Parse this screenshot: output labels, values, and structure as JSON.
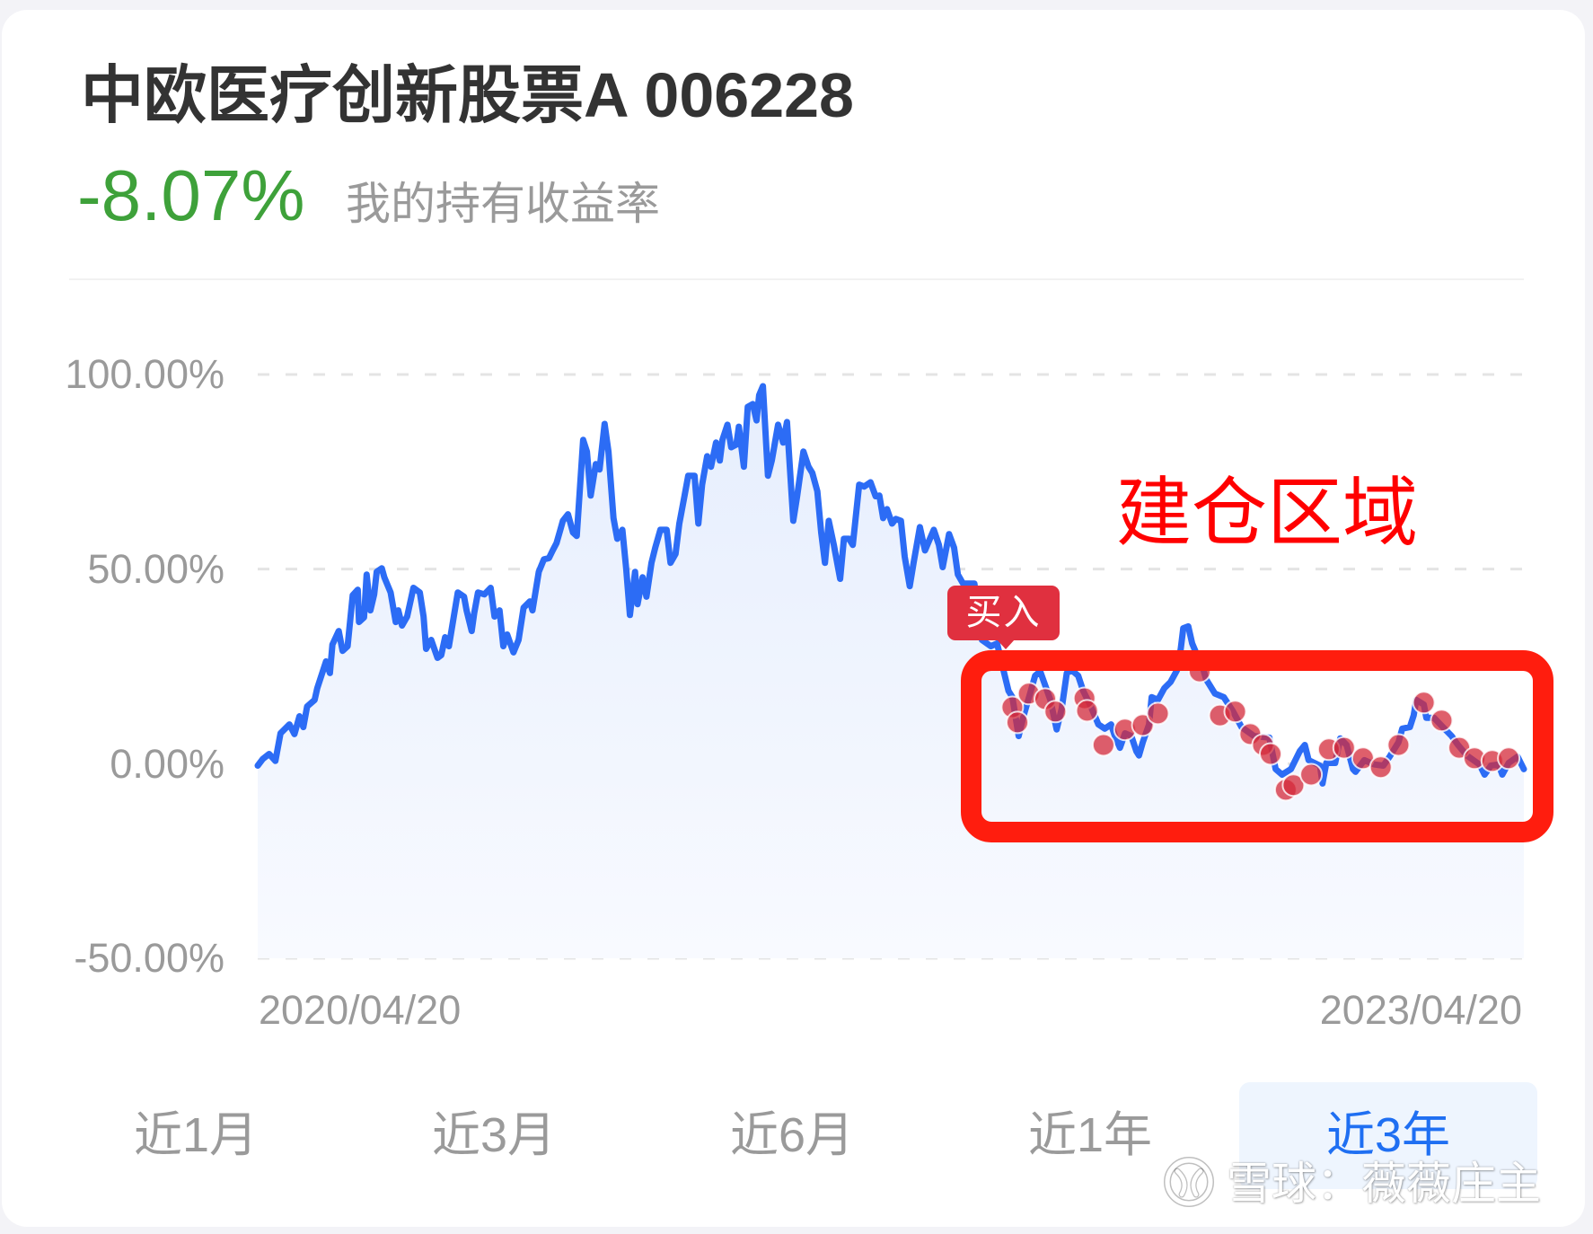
{
  "header": {
    "title": "中欧医疗创新股票A 006228",
    "return_value": "-8.07%",
    "return_label": "我的持有收益率"
  },
  "colors": {
    "title": "#333333",
    "return_negative": "#3ea13a",
    "line": "#2c6cf5",
    "buy_dot": "#d42a3a",
    "buy_badge": "#e0303f",
    "annotation": "#ff1d0e",
    "tab_active": "#1f6ff2",
    "tab_active_bg": "#eef5fe",
    "muted_text": "#9a9a9a"
  },
  "chart": {
    "y_labels": [
      "100.00%",
      "50.00%",
      "0.00%",
      "-50.00%"
    ],
    "x_labels": {
      "start": "2020/04/20",
      "end": "2023/04/20"
    },
    "buy_badge": "买入",
    "annotation_text": "建仓区域"
  },
  "tabs": [
    {
      "label": "近1月",
      "active": false
    },
    {
      "label": "近3月",
      "active": false
    },
    {
      "label": "近6月",
      "active": false
    },
    {
      "label": "近1年",
      "active": false
    },
    {
      "label": "近3年",
      "active": true
    }
  ],
  "watermark": {
    "text": "雪球：薇薇庄主"
  },
  "chart_data": {
    "type": "line",
    "title": "中欧医疗创新股票A 006228",
    "xlabel": "",
    "ylabel": "",
    "x_range": [
      "2020/04/20",
      "2023/04/20"
    ],
    "x_scale": [
      0,
      1000
    ],
    "ylim": [
      -50,
      100
    ],
    "yticks": [
      100,
      50,
      0,
      -50
    ],
    "ytick_labels": [
      "100.00%",
      "50.00%",
      "0.00%",
      "-50.00%"
    ],
    "xtick_labels": [
      "2020/04/20",
      "2023/04/20"
    ],
    "grid": "horizontal dashed",
    "legend": null,
    "series": [
      {
        "name": "收益率",
        "points": [
          [
            0,
            -0.5
          ],
          [
            4,
            1.2
          ],
          [
            9,
            2.5
          ],
          [
            14,
            0.7
          ],
          [
            18,
            7.8
          ],
          [
            25,
            10.1
          ],
          [
            29,
            7.6
          ],
          [
            33,
            12.2
          ],
          [
            36,
            9.4
          ],
          [
            39,
            14.7
          ],
          [
            45,
            16.4
          ],
          [
            47,
            19.4
          ],
          [
            54,
            26.3
          ],
          [
            57,
            23.3
          ],
          [
            59,
            30.6
          ],
          [
            64,
            34.1
          ],
          [
            67,
            29.0
          ],
          [
            71,
            30.2
          ],
          [
            75,
            43.3
          ],
          [
            79,
            44.7
          ],
          [
            80,
            36.4
          ],
          [
            84,
            37.6
          ],
          [
            86,
            48.6
          ],
          [
            89,
            39.4
          ],
          [
            92,
            43.5
          ],
          [
            94,
            49.3
          ],
          [
            98,
            50.2
          ],
          [
            100,
            47.9
          ],
          [
            105,
            44.0
          ],
          [
            109,
            36.4
          ],
          [
            111,
            39.4
          ],
          [
            114,
            35.5
          ],
          [
            118,
            37.8
          ],
          [
            123,
            45.2
          ],
          [
            128,
            44.0
          ],
          [
            131,
            37.8
          ],
          [
            133,
            29.5
          ],
          [
            137,
            31.8
          ],
          [
            142,
            27.2
          ],
          [
            145,
            27.9
          ],
          [
            148,
            32.5
          ],
          [
            151,
            30.2
          ],
          [
            158,
            44.0
          ],
          [
            163,
            42.9
          ],
          [
            165,
            39.4
          ],
          [
            169,
            34.1
          ],
          [
            171,
            38.7
          ],
          [
            174,
            44.0
          ],
          [
            179,
            43.5
          ],
          [
            184,
            45.2
          ],
          [
            187,
            37.8
          ],
          [
            191,
            39.4
          ],
          [
            194,
            30.2
          ],
          [
            197,
            33.2
          ],
          [
            202,
            28.6
          ],
          [
            206,
            31.8
          ],
          [
            210,
            40.1
          ],
          [
            215,
            41.7
          ],
          [
            217,
            39.4
          ],
          [
            222,
            49.3
          ],
          [
            226,
            52.5
          ],
          [
            230,
            52.8
          ],
          [
            233,
            54.8
          ],
          [
            236,
            56.7
          ],
          [
            239,
            60.1
          ],
          [
            241,
            62.4
          ],
          [
            245,
            64.1
          ],
          [
            249,
            59.4
          ],
          [
            252,
            58.5
          ],
          [
            257,
            83.2
          ],
          [
            260,
            80.2
          ],
          [
            263,
            68.9
          ],
          [
            267,
            77.0
          ],
          [
            270,
            75.6
          ],
          [
            274,
            87.3
          ],
          [
            277,
            80.2
          ],
          [
            281,
            63.1
          ],
          [
            284,
            57.8
          ],
          [
            288,
            60.1
          ],
          [
            291,
            50.2
          ],
          [
            294,
            38.2
          ],
          [
            298,
            49.3
          ],
          [
            300,
            41.0
          ],
          [
            304,
            47.9
          ],
          [
            307,
            42.9
          ],
          [
            311,
            51.6
          ],
          [
            314,
            55.5
          ],
          [
            318,
            60.1
          ],
          [
            323,
            60.1
          ],
          [
            326,
            51.6
          ],
          [
            330,
            53.9
          ],
          [
            333,
            61.7
          ],
          [
            337,
            68.7
          ],
          [
            340,
            74.0
          ],
          [
            345,
            74.0
          ],
          [
            348,
            61.7
          ],
          [
            351,
            71.7
          ],
          [
            355,
            79.0
          ],
          [
            358,
            76.3
          ],
          [
            362,
            82.5
          ],
          [
            365,
            77.9
          ],
          [
            367,
            83.2
          ],
          [
            371,
            87.1
          ],
          [
            374,
            81.3
          ],
          [
            378,
            82.0
          ],
          [
            380,
            86.6
          ],
          [
            384,
            76.3
          ],
          [
            387,
            91.7
          ],
          [
            391,
            92.4
          ],
          [
            394,
            88.2
          ],
          [
            396,
            94.7
          ],
          [
            399,
            97.0
          ],
          [
            403,
            74.0
          ],
          [
            406,
            77.9
          ],
          [
            411,
            87.1
          ],
          [
            415,
            82.5
          ],
          [
            418,
            87.8
          ],
          [
            423,
            62.4
          ],
          [
            426,
            68.7
          ],
          [
            429,
            75.6
          ],
          [
            431,
            80.2
          ],
          [
            435,
            76.3
          ],
          [
            438,
            74.7
          ],
          [
            442,
            70.0
          ],
          [
            445,
            59.4
          ],
          [
            448,
            51.6
          ],
          [
            451,
            62.4
          ],
          [
            455,
            56.2
          ],
          [
            460,
            47.5
          ],
          [
            463,
            57.8
          ],
          [
            467,
            57.8
          ],
          [
            470,
            56.2
          ],
          [
            475,
            71.7
          ],
          [
            479,
            71.2
          ],
          [
            484,
            72.3
          ],
          [
            488,
            68.7
          ],
          [
            491,
            68.9
          ],
          [
            494,
            63.1
          ],
          [
            497,
            65.4
          ],
          [
            501,
            61.7
          ],
          [
            504,
            62.9
          ],
          [
            508,
            62.4
          ],
          [
            511,
            53.2
          ],
          [
            515,
            45.6
          ],
          [
            518,
            51.6
          ],
          [
            523,
            60.8
          ],
          [
            527,
            54.8
          ],
          [
            530,
            57.1
          ],
          [
            534,
            60.1
          ],
          [
            538,
            56.2
          ],
          [
            541,
            50.5
          ],
          [
            546,
            59.0
          ],
          [
            550,
            55.5
          ],
          [
            553,
            48.6
          ],
          [
            557,
            46.3
          ],
          [
            566,
            46.3
          ],
          [
            572,
            31.8
          ],
          [
            579,
            30.2
          ],
          [
            584,
            30.9
          ],
          [
            589,
            24.0
          ],
          [
            593,
            18.7
          ],
          [
            596,
            17.1
          ],
          [
            601,
            7.1
          ],
          [
            605,
            12.4
          ],
          [
            610,
            18.0
          ],
          [
            614,
            22.6
          ],
          [
            618,
            23.7
          ],
          [
            621,
            21.0
          ],
          [
            626,
            16.4
          ],
          [
            631,
            8.8
          ],
          [
            635,
            14.1
          ],
          [
            639,
            23.3
          ],
          [
            643,
            24.0
          ],
          [
            648,
            22.6
          ],
          [
            652,
            18.7
          ],
          [
            658,
            14.7
          ],
          [
            664,
            10.1
          ],
          [
            669,
            9.0
          ],
          [
            674,
            10.1
          ],
          [
            677,
            7.1
          ],
          [
            681,
            4.1
          ],
          [
            685,
            7.8
          ],
          [
            690,
            7.1
          ],
          [
            694,
            3.2
          ],
          [
            696,
            2.1
          ],
          [
            699,
            5.5
          ],
          [
            704,
            10.1
          ],
          [
            706,
            17.1
          ],
          [
            711,
            16.4
          ],
          [
            716,
            19.4
          ],
          [
            721,
            21.0
          ],
          [
            726,
            24.0
          ],
          [
            729,
            29.5
          ],
          [
            731,
            34.8
          ],
          [
            735,
            35.3
          ],
          [
            738,
            30.9
          ],
          [
            741,
            28.6
          ],
          [
            747,
            24.0
          ],
          [
            749,
            21.7
          ],
          [
            756,
            18.0
          ],
          [
            763,
            17.1
          ],
          [
            770,
            13.6
          ],
          [
            777,
            9.4
          ],
          [
            787,
            7.1
          ],
          [
            799,
            6.7
          ],
          [
            804,
            -1.4
          ],
          [
            809,
            -2.8
          ],
          [
            816,
            -1.4
          ],
          [
            823,
            3.2
          ],
          [
            827,
            4.8
          ],
          [
            830,
            0.9
          ],
          [
            839,
            -0.5
          ],
          [
            841,
            -5.1
          ],
          [
            844,
            0.2
          ],
          [
            851,
            0.2
          ],
          [
            855,
            6.5
          ],
          [
            860,
            4.8
          ],
          [
            865,
            -1.4
          ],
          [
            867,
            -2.1
          ],
          [
            874,
            0.9
          ],
          [
            882,
            -0.2
          ],
          [
            889,
            -0.5
          ],
          [
            894,
            1.8
          ],
          [
            901,
            5.5
          ],
          [
            904,
            9.0
          ],
          [
            910,
            9.4
          ],
          [
            913,
            12.4
          ],
          [
            915,
            16.4
          ],
          [
            921,
            15.2
          ],
          [
            923,
            11.8
          ],
          [
            929,
            11.8
          ],
          [
            936,
            9.4
          ],
          [
            943,
            7.1
          ],
          [
            948,
            4.8
          ],
          [
            955,
            2.1
          ],
          [
            965,
            -0.2
          ],
          [
            969,
            -2.8
          ],
          [
            974,
            -0.5
          ],
          [
            980,
            -0.2
          ],
          [
            983,
            -2.8
          ],
          [
            988,
            0.2
          ],
          [
            995,
            1.8
          ],
          [
            1000,
            -1.4
          ]
        ]
      }
    ],
    "buy_points": [
      [
        596,
        14.5
      ],
      [
        600,
        10.6
      ],
      [
        609,
        18.0
      ],
      [
        622,
        16.6
      ],
      [
        630,
        13.4
      ],
      [
        653,
        16.8
      ],
      [
        655,
        13.6
      ],
      [
        668,
        4.8
      ],
      [
        685,
        8.8
      ],
      [
        699,
        9.9
      ],
      [
        711,
        12.9
      ],
      [
        744,
        23.7
      ],
      [
        760,
        12.4
      ],
      [
        772,
        13.4
      ],
      [
        784,
        7.6
      ],
      [
        794,
        4.8
      ],
      [
        800,
        2.5
      ],
      [
        812,
        -6.7
      ],
      [
        818,
        -5.5
      ],
      [
        832,
        -2.8
      ],
      [
        846,
        3.7
      ],
      [
        858,
        4.1
      ],
      [
        873,
        1.4
      ],
      [
        887,
        -0.9
      ],
      [
        901,
        4.8
      ],
      [
        921,
        15.7
      ],
      [
        935,
        11.1
      ],
      [
        949,
        4.1
      ],
      [
        961,
        1.4
      ],
      [
        975,
        0.7
      ],
      [
        988,
        1.4
      ]
    ],
    "annotations": [
      {
        "type": "badge",
        "text": "买入",
        "at": [
          591,
          29.0
        ]
      },
      {
        "type": "box",
        "text": "建仓区域",
        "x": [
          565,
          1000
        ],
        "y": [
          -20,
          29
        ]
      }
    ]
  }
}
